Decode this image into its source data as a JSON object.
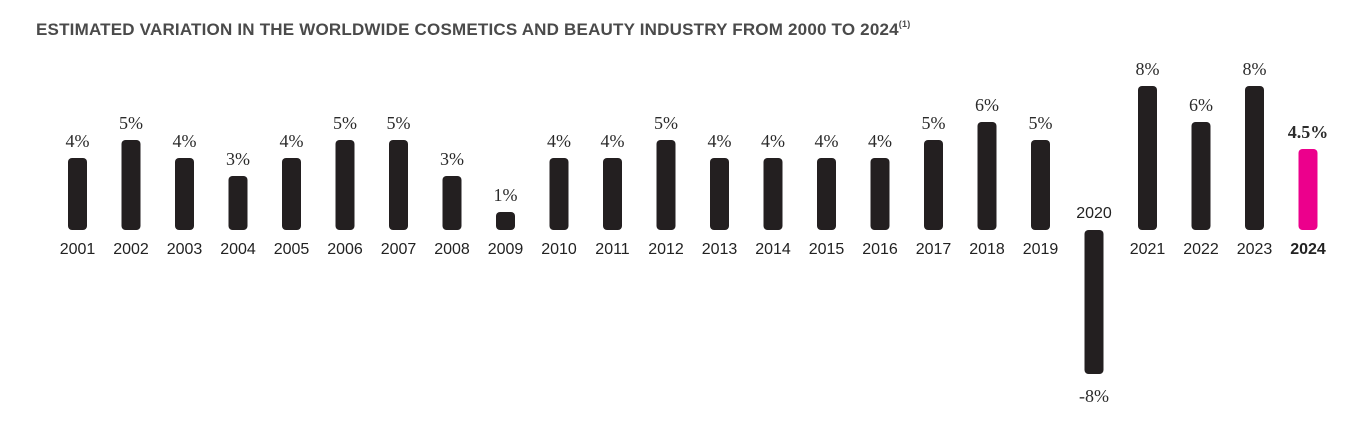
{
  "chart_data": {
    "type": "bar",
    "title": "ESTIMATED VARIATION IN THE WORLDWIDE COSMETICS AND BEAUTY INDUSTRY FROM 2000 TO 2024",
    "title_superscript": "(1)",
    "xlabel": "",
    "ylabel": "",
    "categories": [
      "2001",
      "2002",
      "2003",
      "2004",
      "2005",
      "2006",
      "2007",
      "2008",
      "2009",
      "2010",
      "2011",
      "2012",
      "2013",
      "2014",
      "2015",
      "2016",
      "2017",
      "2018",
      "2019",
      "2020",
      "2021",
      "2022",
      "2023",
      "2024"
    ],
    "values": [
      4,
      5,
      4,
      3,
      4,
      5,
      5,
      3,
      1,
      4,
      4,
      5,
      4,
      4,
      4,
      4,
      5,
      6,
      5,
      -8,
      8,
      6,
      8,
      4.5
    ],
    "value_labels": [
      "4%",
      "5%",
      "4%",
      "3%",
      "4%",
      "5%",
      "5%",
      "3%",
      "1%",
      "4%",
      "4%",
      "5%",
      "4%",
      "4%",
      "4%",
      "4%",
      "5%",
      "6%",
      "5%",
      "-8%",
      "8%",
      "6%",
      "8%",
      "4.5%"
    ],
    "ylim": [
      -8,
      8
    ],
    "grid": false,
    "legend": "none",
    "highlight_category": "2024",
    "colors": {
      "bar": "#231f20",
      "highlight": "#ec008c",
      "text": "#222222",
      "title": "#4a4a4a"
    }
  }
}
